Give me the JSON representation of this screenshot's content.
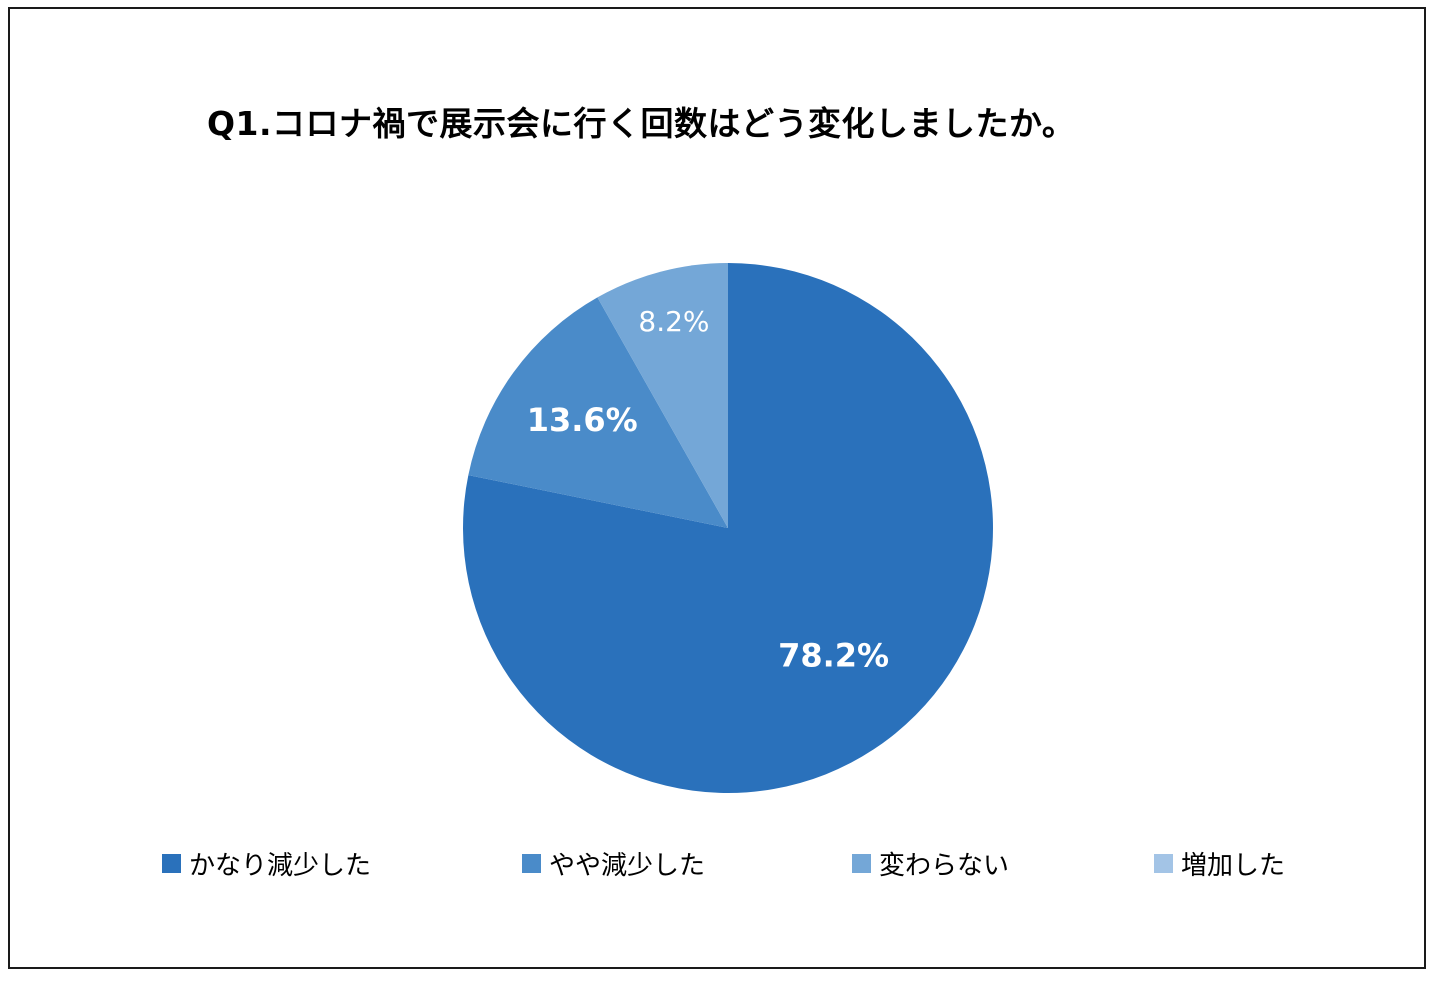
{
  "chart_data": {
    "type": "pie",
    "title": "Q1.コロナ禍で展示会に行く回数はどう変化しましたか。",
    "categories": [
      "かなり減少した",
      "やや減少した",
      "変わらない",
      "増加した"
    ],
    "values": [
      78.2,
      13.6,
      8.2,
      0
    ],
    "data_labels": [
      "78.2%",
      "13.6%",
      "8.2%",
      ""
    ],
    "colors": [
      "#2a71bb",
      "#4a8bc9",
      "#74a7d7",
      "#a3c4e6"
    ],
    "legend_position": "bottom",
    "start_angle": "12 o'clock",
    "direction": "clockwise"
  }
}
